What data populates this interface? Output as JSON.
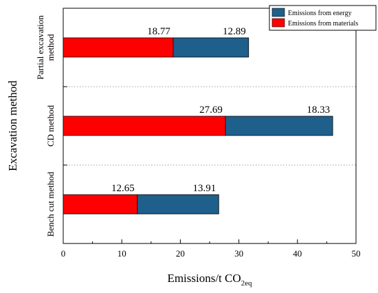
{
  "chart_data": {
    "type": "bar",
    "orientation": "horizontal",
    "stacked": true,
    "categories": [
      "Partial excavation method",
      "CD method",
      "Bench cut method"
    ],
    "category_lines": [
      [
        "Partial excavation",
        "method"
      ],
      [
        "CD method"
      ],
      [
        "Bench cut method"
      ]
    ],
    "series": [
      {
        "name": "Emissions from materials",
        "values": [
          18.77,
          27.69,
          12.65
        ],
        "color": "#ff0000"
      },
      {
        "name": "Emissions from energy",
        "values": [
          12.89,
          18.33,
          13.91
        ],
        "color": "#1f5f8b"
      }
    ],
    "value_labels": [
      [
        "18.77",
        "27.69",
        "12.65"
      ],
      [
        "12.89",
        "18.33",
        "13.91"
      ]
    ],
    "xlabel_main": "Emissions/t CO",
    "xlabel_sub": "2eq",
    "ylabel": "Excavation method",
    "xlim": [
      0,
      50
    ],
    "xticks": [
      "0",
      "10",
      "20",
      "30",
      "40",
      "50"
    ],
    "legend_entries": [
      "Emissions from energy",
      "Emissions from materials"
    ],
    "legend_position": "top-right",
    "grid": "dotted separators between categories"
  }
}
